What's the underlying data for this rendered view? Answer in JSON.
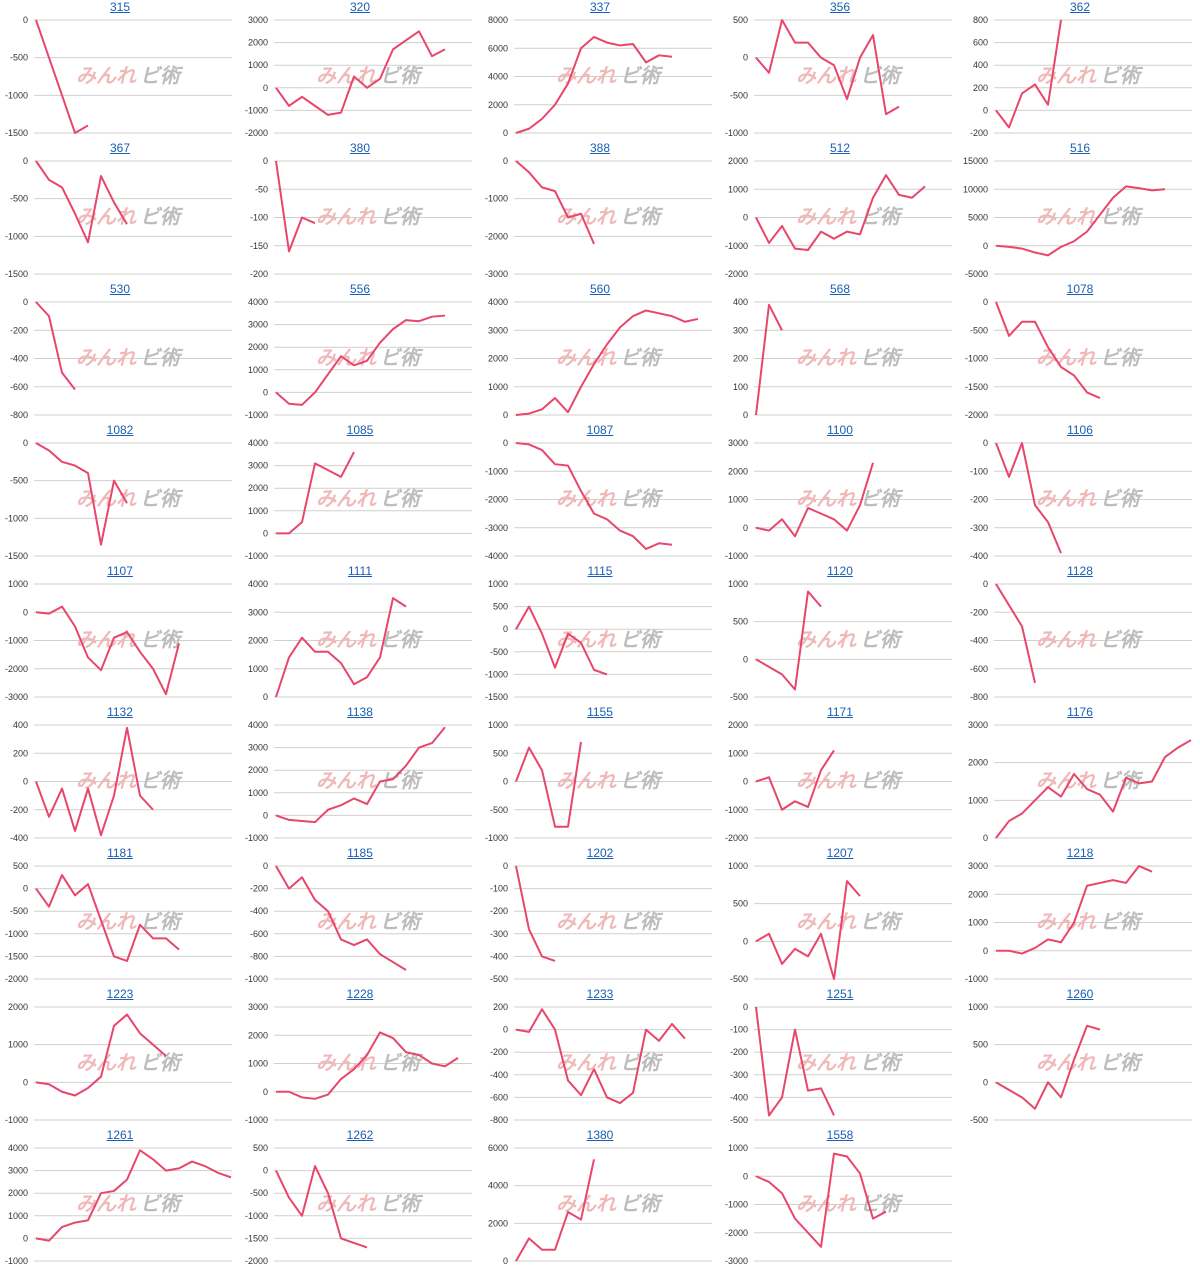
{
  "chart_data": [
    {
      "type": "line",
      "title": "315",
      "yticks": [
        0,
        -500,
        -1000,
        -1500
      ],
      "ylim": [
        -1500,
        0
      ],
      "values": [
        0,
        -500,
        -1000,
        -1500,
        -1400
      ]
    },
    {
      "type": "line",
      "title": "320",
      "yticks": [
        3000,
        2000,
        1000,
        0,
        -1000,
        -2000
      ],
      "ylim": [
        -2000,
        3000
      ],
      "values": [
        0,
        -800,
        -400,
        -800,
        -1200,
        -1100,
        500,
        0,
        400,
        1700,
        2100,
        2500,
        1400,
        1700
      ]
    },
    {
      "type": "line",
      "title": "337",
      "yticks": [
        8000,
        6000,
        4000,
        2000,
        0
      ],
      "ylim": [
        0,
        8000
      ],
      "values": [
        0,
        300,
        1000,
        2000,
        3500,
        6000,
        6800,
        6400,
        6200,
        6300,
        5000,
        5500,
        5400
      ]
    },
    {
      "type": "line",
      "title": "356",
      "yticks": [
        500,
        0,
        -500,
        -1000
      ],
      "ylim": [
        -1000,
        500
      ],
      "values": [
        0,
        -200,
        500,
        200,
        200,
        0,
        -100,
        -550,
        0,
        300,
        -750,
        -650
      ]
    },
    {
      "type": "line",
      "title": "362",
      "yticks": [
        800,
        600,
        400,
        200,
        0,
        -200
      ],
      "ylim": [
        -200,
        800
      ],
      "values": [
        0,
        -150,
        150,
        230,
        50,
        800
      ]
    },
    {
      "type": "line",
      "title": "367",
      "yticks": [
        0,
        -500,
        -1000,
        -1500
      ],
      "ylim": [
        -1500,
        0
      ],
      "values": [
        0,
        -250,
        -350,
        -700,
        -1080,
        -200,
        -550,
        -840
      ]
    },
    {
      "type": "line",
      "title": "380",
      "yticks": [
        0,
        -50,
        -100,
        -150,
        -200
      ],
      "ylim": [
        -200,
        0
      ],
      "values": [
        0,
        -160,
        -100,
        -110
      ]
    },
    {
      "type": "line",
      "title": "388",
      "yticks": [
        0,
        -1000,
        -2000,
        -3000
      ],
      "ylim": [
        -3000,
        0
      ],
      "values": [
        0,
        -300,
        -700,
        -800,
        -1500,
        -1400,
        -2200
      ]
    },
    {
      "type": "line",
      "title": "512",
      "yticks": [
        2000,
        1000,
        0,
        -1000,
        -2000
      ],
      "ylim": [
        -2000,
        2000
      ],
      "values": [
        0,
        -900,
        -300,
        -1100,
        -1150,
        -500,
        -750,
        -500,
        -600,
        700,
        1500,
        800,
        700,
        1100
      ]
    },
    {
      "type": "line",
      "title": "516",
      "yticks": [
        15000,
        10000,
        5000,
        0,
        -5000
      ],
      "ylim": [
        -5000,
        15000
      ],
      "values": [
        0,
        -200,
        -500,
        -1200,
        -1700,
        -200,
        800,
        2500,
        5500,
        8500,
        10500,
        10200,
        9800,
        10000
      ]
    },
    {
      "type": "line",
      "title": "530",
      "yticks": [
        0,
        -200,
        -400,
        -600,
        -800
      ],
      "ylim": [
        -800,
        0
      ],
      "values": [
        0,
        -100,
        -500,
        -620
      ]
    },
    {
      "type": "line",
      "title": "556",
      "yticks": [
        4000,
        3000,
        2000,
        1000,
        0,
        -1000
      ],
      "ylim": [
        -1000,
        4000
      ],
      "values": [
        0,
        -500,
        -550,
        0,
        800,
        1600,
        1200,
        1400,
        2200,
        2800,
        3200,
        3150,
        3350,
        3400
      ]
    },
    {
      "type": "line",
      "title": "560",
      "yticks": [
        4000,
        3000,
        2000,
        1000,
        0
      ],
      "ylim": [
        0,
        4000
      ],
      "values": [
        0,
        50,
        200,
        600,
        100,
        1000,
        1800,
        2500,
        3100,
        3500,
        3700,
        3600,
        3500,
        3300,
        3400
      ]
    },
    {
      "type": "line",
      "title": "568",
      "yticks": [
        400,
        300,
        200,
        100,
        0
      ],
      "ylim": [
        0,
        400
      ],
      "values": [
        0,
        390,
        300
      ]
    },
    {
      "type": "line",
      "title": "1078",
      "yticks": [
        0,
        -500,
        -1000,
        -1500,
        -2000
      ],
      "ylim": [
        -2000,
        0
      ],
      "values": [
        0,
        -600,
        -350,
        -350,
        -800,
        -1150,
        -1300,
        -1600,
        -1700
      ]
    },
    {
      "type": "line",
      "title": "1082",
      "yticks": [
        0,
        -500,
        -1000,
        -1500
      ],
      "ylim": [
        -1500,
        0
      ],
      "values": [
        0,
        -100,
        -250,
        -300,
        -400,
        -1350,
        -500,
        -800
      ]
    },
    {
      "type": "line",
      "title": "1085",
      "yticks": [
        4000,
        3000,
        2000,
        1000,
        0,
        -1000
      ],
      "ylim": [
        -1000,
        4000
      ],
      "values": [
        0,
        0,
        500,
        3100,
        2800,
        2500,
        3600
      ]
    },
    {
      "type": "line",
      "title": "1087",
      "yticks": [
        0,
        -1000,
        -2000,
        -3000,
        -4000
      ],
      "ylim": [
        -4000,
        0
      ],
      "values": [
        0,
        -50,
        -250,
        -750,
        -800,
        -1700,
        -2500,
        -2700,
        -3100,
        -3300,
        -3750,
        -3550,
        -3600
      ]
    },
    {
      "type": "line",
      "title": "1100",
      "yticks": [
        3000,
        2000,
        1000,
        0,
        -1000
      ],
      "ylim": [
        -1000,
        3000
      ],
      "values": [
        0,
        -100,
        300,
        -300,
        700,
        500,
        300,
        -100,
        800,
        2300
      ]
    },
    {
      "type": "line",
      "title": "1106",
      "yticks": [
        0,
        -100,
        -200,
        -300,
        -400
      ],
      "ylim": [
        -400,
        0
      ],
      "values": [
        0,
        -120,
        0,
        -220,
        -280,
        -390
      ]
    },
    {
      "type": "line",
      "title": "1107",
      "yticks": [
        1000,
        0,
        -1000,
        -2000,
        -3000
      ],
      "ylim": [
        -3000,
        1000
      ],
      "values": [
        0,
        -50,
        200,
        -500,
        -1600,
        -2050,
        -900,
        -700,
        -1400,
        -2000,
        -2900,
        -1100
      ]
    },
    {
      "type": "line",
      "title": "1111",
      "yticks": [
        4000,
        3000,
        2000,
        1000,
        0
      ],
      "ylim": [
        0,
        4000
      ],
      "values": [
        0,
        1400,
        2100,
        1600,
        1600,
        1200,
        450,
        700,
        1400,
        3500,
        3200
      ]
    },
    {
      "type": "line",
      "title": "1115",
      "yticks": [
        1000,
        500,
        0,
        -500,
        -1000,
        -1500
      ],
      "ylim": [
        -1500,
        1000
      ],
      "values": [
        0,
        500,
        -100,
        -850,
        -100,
        -300,
        -900,
        -1000
      ]
    },
    {
      "type": "line",
      "title": "1120",
      "yticks": [
        1000,
        500,
        0,
        -500
      ],
      "ylim": [
        -500,
        1000
      ],
      "values": [
        0,
        -100,
        -200,
        -400,
        900,
        700
      ]
    },
    {
      "type": "line",
      "title": "1128",
      "yticks": [
        0,
        -200,
        -400,
        -600,
        -800
      ],
      "ylim": [
        -800,
        0
      ],
      "values": [
        0,
        -150,
        -300,
        -700
      ]
    },
    {
      "type": "line",
      "title": "1132",
      "yticks": [
        400,
        200,
        0,
        -200,
        -400
      ],
      "ylim": [
        -400,
        400
      ],
      "values": [
        0,
        -250,
        -50,
        -350,
        -50,
        -380,
        -100,
        380,
        -100,
        -200
      ]
    },
    {
      "type": "line",
      "title": "1138",
      "yticks": [
        4000,
        3000,
        2000,
        1000,
        0,
        -1000
      ],
      "ylim": [
        -1000,
        4000
      ],
      "values": [
        0,
        -200,
        -250,
        -300,
        250,
        450,
        750,
        500,
        1500,
        1600,
        2200,
        3000,
        3200,
        3900
      ]
    },
    {
      "type": "line",
      "title": "1155",
      "yticks": [
        1000,
        500,
        0,
        -500,
        -1000
      ],
      "ylim": [
        -1000,
        1000
      ],
      "values": [
        0,
        600,
        200,
        -800,
        -800,
        700
      ]
    },
    {
      "type": "line",
      "title": "1171",
      "yticks": [
        2000,
        1000,
        0,
        -1000,
        -2000
      ],
      "ylim": [
        -2000,
        2000
      ],
      "values": [
        0,
        150,
        -1000,
        -700,
        -900,
        400,
        1100
      ]
    },
    {
      "type": "line",
      "title": "1176",
      "yticks": [
        3000,
        2000,
        1000,
        0
      ],
      "ylim": [
        0,
        3000
      ],
      "values": [
        0,
        450,
        650,
        1000,
        1350,
        1100,
        1700,
        1300,
        1150,
        700,
        1600,
        1450,
        1500,
        2150,
        2400,
        2600
      ]
    },
    {
      "type": "line",
      "title": "1181",
      "yticks": [
        500,
        0,
        -500,
        -1000,
        -1500,
        -2000
      ],
      "ylim": [
        -2000,
        500
      ],
      "values": [
        0,
        -400,
        300,
        -150,
        100,
        -700,
        -1500,
        -1600,
        -800,
        -1100,
        -1100,
        -1350
      ]
    },
    {
      "type": "line",
      "title": "1185",
      "yticks": [
        0,
        -200,
        -400,
        -600,
        -800,
        -1000
      ],
      "ylim": [
        -1000,
        0
      ],
      "values": [
        0,
        -200,
        -100,
        -300,
        -400,
        -650,
        -700,
        -650,
        -780,
        -850,
        -920
      ]
    },
    {
      "type": "line",
      "title": "1202",
      "yticks": [
        0,
        -100,
        -200,
        -300,
        -400,
        -500
      ],
      "ylim": [
        -500,
        0
      ],
      "values": [
        0,
        -280,
        -400,
        -420
      ]
    },
    {
      "type": "line",
      "title": "1207",
      "yticks": [
        1000,
        500,
        0,
        -500
      ],
      "ylim": [
        -500,
        1000
      ],
      "values": [
        0,
        100,
        -300,
        -100,
        -200,
        100,
        -500,
        800,
        600
      ]
    },
    {
      "type": "line",
      "title": "1218",
      "yticks": [
        3000,
        2000,
        1000,
        0,
        -1000
      ],
      "ylim": [
        -1000,
        3000
      ],
      "values": [
        0,
        0,
        -100,
        100,
        400,
        300,
        1000,
        2300,
        2400,
        2500,
        2400,
        3000,
        2800
      ]
    },
    {
      "type": "line",
      "title": "1223",
      "yticks": [
        2000,
        1000,
        0,
        -1000
      ],
      "ylim": [
        -1000,
        2000
      ],
      "values": [
        0,
        -50,
        -250,
        -350,
        -150,
        150,
        1500,
        1800,
        1300,
        1000,
        700
      ]
    },
    {
      "type": "line",
      "title": "1228",
      "yticks": [
        3000,
        2000,
        1000,
        0,
        -1000
      ],
      "ylim": [
        -1000,
        3000
      ],
      "values": [
        0,
        0,
        -200,
        -250,
        -100,
        450,
        800,
        1300,
        2100,
        1900,
        1400,
        1300,
        1000,
        900,
        1200
      ]
    },
    {
      "type": "line",
      "title": "1233",
      "yticks": [
        200,
        0,
        -200,
        -400,
        -600,
        -800
      ],
      "ylim": [
        -800,
        200
      ],
      "values": [
        0,
        -20,
        180,
        0,
        -450,
        -580,
        -350,
        -600,
        -650,
        -560,
        0,
        -100,
        50,
        -80
      ]
    },
    {
      "type": "line",
      "title": "1251",
      "yticks": [
        0,
        -100,
        -200,
        -300,
        -400,
        -500
      ],
      "ylim": [
        -500,
        0
      ],
      "values": [
        0,
        -480,
        -400,
        -100,
        -370,
        -360,
        -480
      ]
    },
    {
      "type": "line",
      "title": "1260",
      "yticks": [
        1000,
        500,
        0,
        -500
      ],
      "ylim": [
        -500,
        1000
      ],
      "values": [
        0,
        -100,
        -200,
        -350,
        0,
        -200,
        300,
        750,
        700
      ]
    },
    {
      "type": "line",
      "title": "1261",
      "yticks": [
        4000,
        3000,
        2000,
        1000,
        0,
        -1000
      ],
      "ylim": [
        -1000,
        4000
      ],
      "values": [
        0,
        -100,
        500,
        700,
        800,
        2000,
        2100,
        2600,
        3900,
        3500,
        3000,
        3100,
        3400,
        3200,
        2900,
        2700
      ]
    },
    {
      "type": "line",
      "title": "1262",
      "yticks": [
        500,
        0,
        -500,
        -1000,
        -1500,
        -2000
      ],
      "ylim": [
        -2000,
        500
      ],
      "values": [
        0,
        -600,
        -1000,
        100,
        -500,
        -1500,
        -1600,
        -1700
      ]
    },
    {
      "type": "line",
      "title": "1380",
      "yticks": [
        6000,
        4000,
        2000,
        0
      ],
      "ylim": [
        0,
        6000
      ],
      "values": [
        0,
        1200,
        600,
        600,
        2600,
        2200,
        5400
      ]
    },
    {
      "type": "line",
      "title": "1558",
      "yticks": [
        1000,
        0,
        -1000,
        -2000,
        -3000
      ],
      "ylim": [
        -3000,
        1000
      ],
      "values": [
        0,
        -200,
        -600,
        -1500,
        -2000,
        -2500,
        800,
        700,
        100,
        -1500,
        -1250
      ]
    }
  ],
  "style": {
    "line_color": "#e8466a",
    "title_color": "#1a5fb4",
    "grid_color": "#cfcfcf",
    "tick_color": "#333333"
  },
  "watermark": {
    "part1": "みんれ",
    "part2": "ビ術"
  }
}
